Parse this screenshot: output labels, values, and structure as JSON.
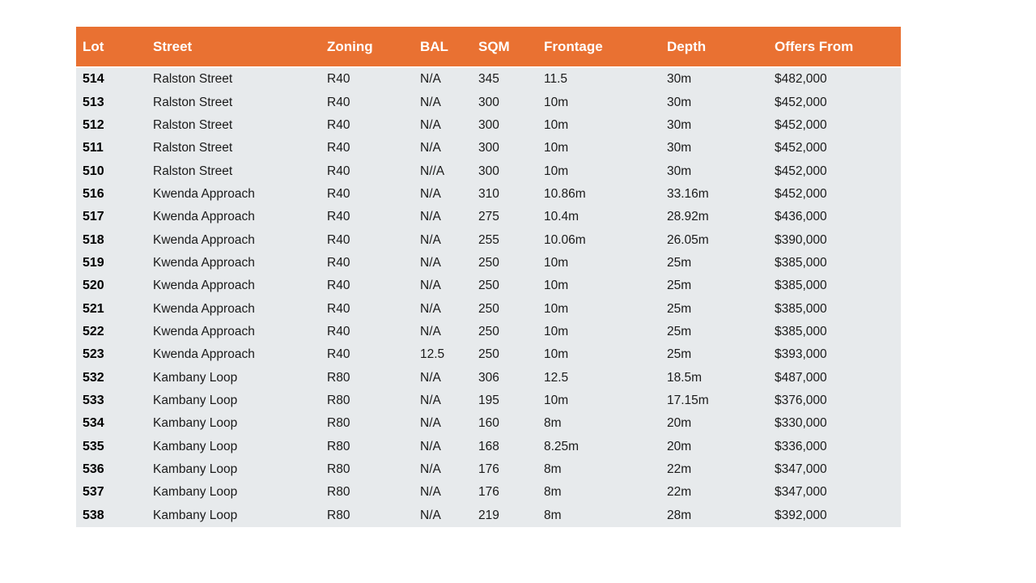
{
  "colors": {
    "header_bg": "#E97132",
    "header_text": "#FFFFFF",
    "row_bg": "#E7EAEC",
    "body_text": "#1A1A1A"
  },
  "table": {
    "columns": [
      {
        "key": "lot",
        "label": "Lot"
      },
      {
        "key": "street",
        "label": "Street"
      },
      {
        "key": "zoning",
        "label": "Zoning"
      },
      {
        "key": "bal",
        "label": "BAL"
      },
      {
        "key": "sqm",
        "label": "SQM"
      },
      {
        "key": "frontage",
        "label": "Frontage"
      },
      {
        "key": "depth",
        "label": "Depth"
      },
      {
        "key": "offers",
        "label": "Offers From"
      }
    ],
    "rows": [
      {
        "lot": "514",
        "street": "Ralston Street",
        "zoning": "R40",
        "bal": "N/A",
        "sqm": "345",
        "frontage": "11.5",
        "depth": "30m",
        "offers": "$482,000"
      },
      {
        "lot": "513",
        "street": "Ralston Street",
        "zoning": "R40",
        "bal": "N/A",
        "sqm": "300",
        "frontage": "10m",
        "depth": "30m",
        "offers": "$452,000"
      },
      {
        "lot": "512",
        "street": "Ralston Street",
        "zoning": "R40",
        "bal": "N/A",
        "sqm": "300",
        "frontage": "10m",
        "depth": "30m",
        "offers": "$452,000"
      },
      {
        "lot": "511",
        "street": "Ralston Street",
        "zoning": "R40",
        "bal": "N/A",
        "sqm": "300",
        "frontage": "10m",
        "depth": "30m",
        "offers": "$452,000"
      },
      {
        "lot": "510",
        "street": "Ralston Street",
        "zoning": "R40",
        "bal": "N//A",
        "sqm": "300",
        "frontage": "10m",
        "depth": "30m",
        "offers": "$452,000"
      },
      {
        "lot": "516",
        "street": "Kwenda Approach",
        "zoning": "R40",
        "bal": "N/A",
        "sqm": "310",
        "frontage": "10.86m",
        "depth": "33.16m",
        "offers": "$452,000"
      },
      {
        "lot": "517",
        "street": "Kwenda Approach",
        "zoning": "R40",
        "bal": "N/A",
        "sqm": "275",
        "frontage": "10.4m",
        "depth": "28.92m",
        "offers": "$436,000"
      },
      {
        "lot": "518",
        "street": "Kwenda Approach",
        "zoning": "R40",
        "bal": "N/A",
        "sqm": "255",
        "frontage": "10.06m",
        "depth": "26.05m",
        "offers": "$390,000"
      },
      {
        "lot": "519",
        "street": "Kwenda Approach",
        "zoning": "R40",
        "bal": "N/A",
        "sqm": "250",
        "frontage": "10m",
        "depth": "25m",
        "offers": "$385,000"
      },
      {
        "lot": "520",
        "street": "Kwenda Approach",
        "zoning": "R40",
        "bal": "N/A",
        "sqm": "250",
        "frontage": "10m",
        "depth": "25m",
        "offers": "$385,000"
      },
      {
        "lot": "521",
        "street": "Kwenda Approach",
        "zoning": "R40",
        "bal": "N/A",
        "sqm": "250",
        "frontage": "10m",
        "depth": "25m",
        "offers": "$385,000"
      },
      {
        "lot": "522",
        "street": "Kwenda Approach",
        "zoning": "R40",
        "bal": "N/A",
        "sqm": "250",
        "frontage": "10m",
        "depth": "25m",
        "offers": "$385,000"
      },
      {
        "lot": "523",
        "street": "Kwenda Approach",
        "zoning": "R40",
        "bal": "12.5",
        "sqm": "250",
        "frontage": "10m",
        "depth": "25m",
        "offers": "$393,000"
      },
      {
        "lot": "532",
        "street": "Kambany Loop",
        "zoning": "R80",
        "bal": "N/A",
        "sqm": "306",
        "frontage": "12.5",
        "depth": "18.5m",
        "offers": "$487,000"
      },
      {
        "lot": "533",
        "street": "Kambany Loop",
        "zoning": "R80",
        "bal": "N/A",
        "sqm": "195",
        "frontage": "10m",
        "depth": "17.15m",
        "offers": "$376,000"
      },
      {
        "lot": "534",
        "street": "Kambany Loop",
        "zoning": "R80",
        "bal": "N/A",
        "sqm": "160",
        "frontage": "8m",
        "depth": "20m",
        "offers": "$330,000"
      },
      {
        "lot": "535",
        "street": "Kambany Loop",
        "zoning": "R80",
        "bal": "N/A",
        "sqm": "168",
        "frontage": "8.25m",
        "depth": "20m",
        "offers": "$336,000"
      },
      {
        "lot": "536",
        "street": "Kambany Loop",
        "zoning": "R80",
        "bal": "N/A",
        "sqm": "176",
        "frontage": "8m",
        "depth": "22m",
        "offers": "$347,000"
      },
      {
        "lot": "537",
        "street": "Kambany Loop",
        "zoning": "R80",
        "bal": "N/A",
        "sqm": "176",
        "frontage": "8m",
        "depth": "22m",
        "offers": "$347,000"
      },
      {
        "lot": "538",
        "street": "Kambany Loop",
        "zoning": "R80",
        "bal": "N/A",
        "sqm": "219",
        "frontage": "8m",
        "depth": "28m",
        "offers": "$392,000"
      }
    ]
  }
}
